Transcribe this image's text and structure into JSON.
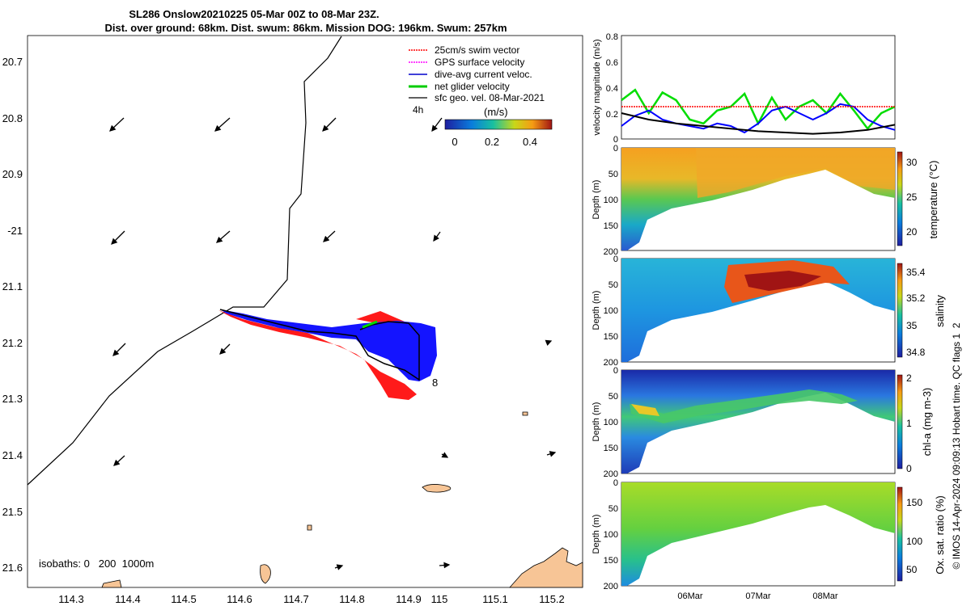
{
  "header": {
    "title_line1": "SL286 Onslow20210225 05-Mar 00Z to 08-Mar 23Z.",
    "title_line2": "Dist. over ground: 68km. Dist. swum: 86km. Mission DOG: 196km. Swum: 257km"
  },
  "map": {
    "legend": [
      {
        "label": "25cm/s swim vector",
        "color": "#ff0000",
        "style": "dotted-arrow"
      },
      {
        "label": "GPS surface velocity",
        "color": "#ff00ff",
        "style": "dotted-arrow"
      },
      {
        "label": "dive-avg current veloc.",
        "color": "#0000cc",
        "style": "arrow"
      },
      {
        "label": "net glider velocity",
        "color": "#00cc00",
        "style": "thick-arrow"
      },
      {
        "label": "sfc geo. vel. 08-Mar-2021",
        "color": "#000000",
        "style": "arrow"
      }
    ],
    "colorbar": {
      "label": "(m/s)",
      "left_label": "4h",
      "ticks": [
        "0",
        "0.2",
        "0.4"
      ],
      "range": [
        0,
        0.5
      ]
    },
    "day_marker": "8",
    "isobaths_text": "isobaths: 0   200  1000m",
    "lon_ticks": [
      "114.3",
      "114.4",
      "114.5",
      "114.6",
      "114.7",
      "114.8",
      "114.9",
      "115",
      "115.1",
      "115.2"
    ],
    "lat_ticks": [
      "20.7",
      "20.8",
      "20.9",
      "-21",
      "21.1",
      "21.2",
      "21.3",
      "21.4",
      "21.5",
      "21.6"
    ],
    "land_color": "#f7c596",
    "swim_color": "#ff0000",
    "current_color": "#0000ff"
  },
  "chart_data": [
    {
      "type": "line",
      "ylabel": "velocity magnitude (m/s)",
      "ylim": [
        0,
        0.8
      ],
      "yticks": [
        "0",
        "0.2",
        "0.4",
        "0.6",
        "0.8"
      ],
      "xlim": [
        "05-Mar 00Z",
        "08-Mar 23Z"
      ],
      "series": [
        {
          "color": "#00dd00",
          "x": [
            0,
            0.05,
            0.1,
            0.15,
            0.2,
            0.25,
            0.3,
            0.35,
            0.4,
            0.45,
            0.5,
            0.55,
            0.6,
            0.65,
            0.7,
            0.75,
            0.8,
            0.85,
            0.9,
            0.95,
            1
          ],
          "values": [
            0.3,
            0.38,
            0.2,
            0.36,
            0.3,
            0.15,
            0.12,
            0.22,
            0.25,
            0.35,
            0.12,
            0.32,
            0.15,
            0.25,
            0.3,
            0.2,
            0.35,
            0.22,
            0.08,
            0.2,
            0.25
          ]
        },
        {
          "color": "#0000ff",
          "x": [
            0,
            0.05,
            0.1,
            0.15,
            0.2,
            0.25,
            0.3,
            0.35,
            0.4,
            0.45,
            0.5,
            0.55,
            0.6,
            0.65,
            0.7,
            0.75,
            0.8,
            0.85,
            0.9,
            0.95,
            1
          ],
          "values": [
            0.1,
            0.18,
            0.22,
            0.15,
            0.12,
            0.1,
            0.08,
            0.12,
            0.1,
            0.05,
            0.12,
            0.22,
            0.25,
            0.2,
            0.15,
            0.2,
            0.27,
            0.25,
            0.15,
            0.1,
            0.07
          ]
        },
        {
          "color": "#000000",
          "x": [
            0,
            0.1,
            0.2,
            0.3,
            0.4,
            0.5,
            0.6,
            0.7,
            0.8,
            0.9,
            1
          ],
          "values": [
            0.2,
            0.15,
            0.12,
            0.1,
            0.08,
            0.06,
            0.05,
            0.04,
            0.05,
            0.07,
            0.11
          ]
        },
        {
          "color": "#ff0000",
          "x": [
            0,
            1
          ],
          "values": [
            0.25,
            0.25
          ]
        }
      ]
    },
    {
      "type": "heatmap",
      "ylabel": "Depth (m)",
      "variable": "temperature (°C)",
      "colorbar_ticks": [
        "30",
        "25",
        "20"
      ],
      "clim": [
        18,
        31
      ]
    },
    {
      "type": "heatmap",
      "ylabel": "Depth (m)",
      "variable": "salinity",
      "colorbar_ticks": [
        "35.4",
        "35.2",
        "35",
        "34.8"
      ],
      "clim": [
        34.7,
        35.5
      ]
    },
    {
      "type": "heatmap",
      "ylabel": "Depth (m)",
      "variable": "chl-a (mg m-3)",
      "colorbar_ticks": [
        "2",
        "1",
        "0"
      ],
      "clim": [
        0,
        2
      ]
    },
    {
      "type": "heatmap",
      "ylabel": "Depth (m)",
      "variable": "Ox. sat. ratio (%)",
      "colorbar_ticks": [
        "150",
        "100",
        "50"
      ],
      "clim": [
        30,
        170
      ]
    }
  ],
  "sections": {
    "depth_ticks": [
      "0",
      "50",
      "100",
      "150",
      "200"
    ],
    "x_ticks": [
      "06Mar",
      "07Mar",
      "08Mar"
    ]
  },
  "side_note": "© IMOS 14-Apr-2024 09:09:13 Hobart time. QC flags 1  2"
}
